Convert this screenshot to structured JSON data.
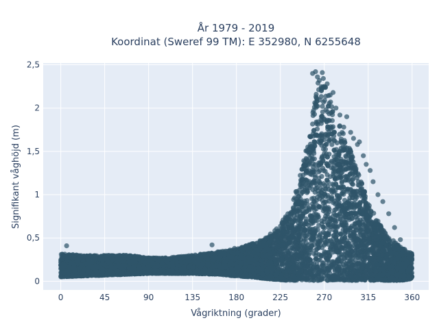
{
  "chart_data": {
    "type": "scatter",
    "title_line1": "År 1979 - 2019",
    "title_line2": "Koordinat (Sweref 99 TM): E 352980, N 6255648",
    "xlabel": "Vågriktning (grader)",
    "ylabel": "Signifikant våghöjd (m)",
    "xlim": [
      -18,
      377
    ],
    "ylim": [
      -0.1,
      2.52
    ],
    "x_ticks": [
      0,
      45,
      90,
      135,
      180,
      225,
      270,
      315,
      360
    ],
    "x_tick_labels": [
      "0",
      "45",
      "90",
      "135",
      "180",
      "225",
      "270",
      "315",
      "360"
    ],
    "y_ticks": [
      0,
      0.5,
      1,
      1.5,
      2,
      2.5
    ],
    "y_tick_labels": [
      "0",
      "0,5",
      "1",
      "1,5",
      "2",
      "2,5"
    ],
    "grid": true,
    "marker_color": "#2f5569",
    "background_color": "#e5ecf6",
    "envelope": {
      "x": [
        0,
        20,
        45,
        70,
        90,
        110,
        135,
        160,
        180,
        195,
        210,
        222,
        232,
        240,
        246,
        252,
        258,
        263,
        268,
        273,
        278,
        284,
        290,
        296,
        302,
        308,
        314,
        320,
        326,
        333,
        340,
        348,
        355,
        360
      ],
      "y_upper": [
        0.32,
        0.3,
        0.3,
        0.3,
        0.27,
        0.27,
        0.3,
        0.34,
        0.37,
        0.43,
        0.5,
        0.62,
        0.78,
        1.0,
        1.25,
        1.6,
        1.95,
        2.28,
        2.38,
        2.2,
        2.05,
        1.85,
        1.7,
        1.55,
        1.35,
        1.15,
        0.95,
        0.8,
        0.68,
        0.55,
        0.48,
        0.4,
        0.35,
        0.32
      ],
      "y_lower": [
        0.05,
        0.06,
        0.07,
        0.08,
        0.09,
        0.09,
        0.09,
        0.08,
        0.06,
        0.05,
        0.03,
        0.02,
        0.01,
        0.01,
        0.01,
        0.01,
        0.01,
        0.01,
        0.01,
        0.01,
        0.01,
        0.01,
        0.01,
        0.01,
        0.01,
        0.01,
        0.01,
        0.01,
        0.01,
        0.01,
        0.01,
        0.01,
        0.02,
        0.03
      ]
    },
    "outliers": {
      "x": [
        258,
        261,
        263,
        265,
        268,
        270,
        273,
        276,
        279,
        282,
        286,
        290,
        293,
        297,
        300,
        304,
        306,
        310,
        313,
        317,
        320,
        325,
        330,
        336,
        342,
        348,
        6,
        155,
        178,
        210
      ],
      "y": [
        2.4,
        2.42,
        2.36,
        2.32,
        2.41,
        2.25,
        2.28,
        2.15,
        2.18,
        2.0,
        1.92,
        1.78,
        1.9,
        1.72,
        1.65,
        1.58,
        1.61,
        1.45,
        1.35,
        1.28,
        1.15,
        1.0,
        0.92,
        0.78,
        0.62,
        0.48,
        0.41,
        0.42,
        0.38,
        0.5
      ]
    }
  }
}
